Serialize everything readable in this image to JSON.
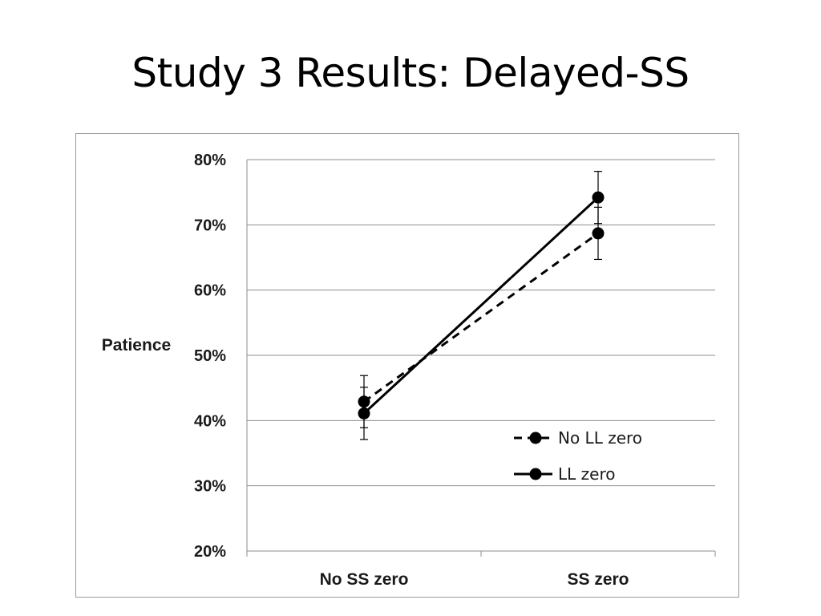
{
  "slide": {
    "title": "Study 3 Results: Delayed-SS"
  },
  "chart_data": {
    "type": "line",
    "title": "",
    "xlabel": "",
    "ylabel": "Patience",
    "categories": [
      "No SS zero",
      "SS zero"
    ],
    "ylim": [
      0.2,
      0.8
    ],
    "yticks": [
      0.2,
      0.3,
      0.4,
      0.5,
      0.6,
      0.7,
      0.8
    ],
    "ytick_labels": [
      "20%",
      "30%",
      "40%",
      "50%",
      "60%",
      "70%",
      "80%"
    ],
    "grid": true,
    "legend_position": "lower-right",
    "series": [
      {
        "name": "No LL zero",
        "style": "dashed",
        "color": "#000000",
        "values": [
          0.429,
          0.687
        ],
        "err_low": [
          0.389,
          0.647
        ],
        "err_high": [
          0.469,
          0.727
        ]
      },
      {
        "name": "LL zero",
        "style": "solid",
        "color": "#000000",
        "values": [
          0.411,
          0.742
        ],
        "err_low": [
          0.371,
          0.702
        ],
        "err_high": [
          0.451,
          0.782
        ]
      }
    ]
  }
}
